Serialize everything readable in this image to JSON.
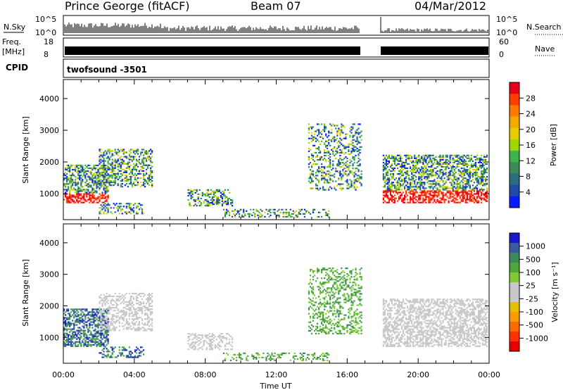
{
  "header": {
    "station": "Prince George (fitACF)",
    "beam": "Beam 07",
    "date": "04/Mar/2012"
  },
  "noise_panel": {
    "left_label": "N.Sky",
    "right_label": "N.Search",
    "left_ticks": [
      "10^5",
      "10^0"
    ],
    "right_ticks": [
      "10^5",
      "10^0"
    ]
  },
  "freq_panel": {
    "left_label_1": "Freq.",
    "left_label_2": "[MHz]",
    "right_label": "Nave",
    "left_ticks": [
      "18",
      "8"
    ],
    "right_ticks": [
      "60",
      "0"
    ]
  },
  "cpid_panel": {
    "label": "CPID",
    "value": "twofsound  -3501"
  },
  "chart_data": [
    {
      "type": "heatmap",
      "name": "power",
      "ylabel": "Slant Range [km]",
      "ylim": [
        180,
        4600
      ],
      "yticks": [
        1000,
        2000,
        3000,
        4000
      ],
      "xlim": [
        0,
        24
      ],
      "colorbar": {
        "label": "Power [dB]",
        "ticks": [
          "28",
          "24",
          "20",
          "16",
          "12",
          "8",
          "4"
        ],
        "colors": [
          "#e8001a",
          "#ff3d00",
          "#ff7a00",
          "#f5a800",
          "#e6cc00",
          "#9ed600",
          "#3cb44a",
          "#3c8a5a",
          "#2a6e80",
          "#1f4ca8",
          "#0a1aff"
        ]
      }
    },
    {
      "type": "heatmap",
      "name": "velocity",
      "ylabel": "Slant Range [km]",
      "ylim": [
        180,
        4600
      ],
      "yticks": [
        1000,
        2000,
        3000,
        4000
      ],
      "xlim": [
        0,
        24
      ],
      "colorbar": {
        "label": "Velocity [m s⁻¹]",
        "ticks": [
          "1000",
          "500",
          "100",
          "25",
          "-25",
          "-100",
          "-500",
          "-1000"
        ],
        "colors": [
          "#1a1acc",
          "#3a5aa0",
          "#3c8a5a",
          "#4fa63c",
          "#80cc30",
          "#c8c8c8",
          "#c8c8c8",
          "#e6c000",
          "#ff9a00",
          "#ff6a00",
          "#ff3000",
          "#e80000"
        ]
      }
    }
  ],
  "time_axis": {
    "label": "Time UT",
    "ticks": [
      "00:00",
      "04:00",
      "08:00",
      "12:00",
      "16:00",
      "20:00",
      "00:00"
    ]
  },
  "colors": {
    "power_scale": [
      "#0a1aff",
      "#1f4ca8",
      "#2a6e80",
      "#3c8a5a",
      "#3cb44a",
      "#9ed600",
      "#e6cc00",
      "#f5a800",
      "#ff7a00",
      "#ff3d00",
      "#e8001a"
    ],
    "velocity_scale": [
      "#e80000",
      "#ff3000",
      "#ff6a00",
      "#ff9a00",
      "#e6c000",
      "#c8c8c8",
      "#c8c8c8",
      "#80cc30",
      "#4fa63c",
      "#3c8a5a",
      "#3a5aa0",
      "#1a1acc"
    ]
  }
}
